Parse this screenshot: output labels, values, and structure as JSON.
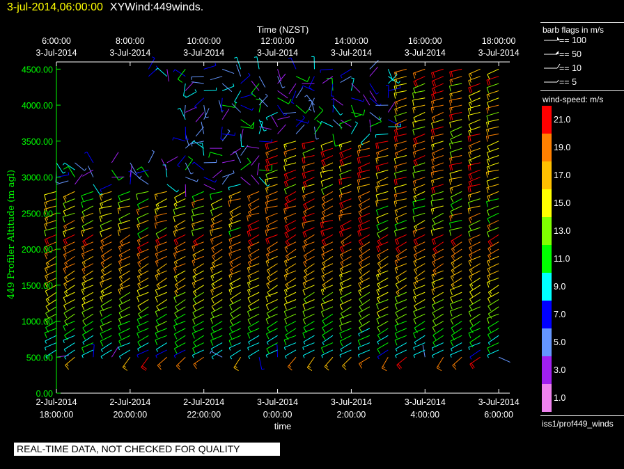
{
  "header": {
    "timestamp": "3-jul-2014,06:00:00",
    "title": "XYWind:449winds."
  },
  "footer": {
    "qc_notice": "REAL-TIME DATA, NOT CHECKED FOR QUALITY",
    "source": "iss1/prof449_winds"
  },
  "legend": {
    "barb_title": "barb flags in m/s",
    "barb_items": [
      "== 100",
      "== 50",
      "== 10",
      "== 5"
    ],
    "speed_title": "wind-speed: m/s",
    "speed_labels": [
      "21.0",
      "19.0",
      "17.0",
      "15.0",
      "13.0",
      "11.0",
      "9.0",
      "7.0",
      "5.0",
      "3.0",
      "1.0"
    ],
    "speed_colors": [
      "#ff0000",
      "#ff8000",
      "#ffc000",
      "#ffff00",
      "#80ff00",
      "#00ff00",
      "#00ffff",
      "#0000ff",
      "#6496ff",
      "#a020f0",
      "#ee82ee"
    ]
  },
  "chart_data": {
    "type": "scatter",
    "subtype": "wind-barb time-height",
    "xlabel": "time",
    "x2label": "Time (NZST)",
    "ylabel": "449 Profiler Altitude (m agl)",
    "ylim": [
      0,
      4600
    ],
    "bottom_ticks": [
      {
        "date": "2-Jul-2014",
        "time": "18:00:00"
      },
      {
        "date": "2-Jul-2014",
        "time": "20:00:00"
      },
      {
        "date": "2-Jul-2014",
        "time": "22:00:00"
      },
      {
        "date": "3-Jul-2014",
        "time": "0:00:00"
      },
      {
        "date": "3-Jul-2014",
        "time": "2:00:00"
      },
      {
        "date": "3-Jul-2014",
        "time": "4:00:00"
      },
      {
        "date": "3-Jul-2014",
        "time": "6:00:00"
      }
    ],
    "top_ticks": [
      {
        "time": "6:00:00",
        "date": "3-Jul-2014"
      },
      {
        "time": "8:00:00",
        "date": "3-Jul-2014"
      },
      {
        "time": "10:00:00",
        "date": "3-Jul-2014"
      },
      {
        "time": "12:00:00",
        "date": "3-Jul-2014"
      },
      {
        "time": "14:00:00",
        "date": "3-Jul-2014"
      },
      {
        "time": "16:00:00",
        "date": "3-Jul-2014"
      },
      {
        "time": "18:00:00",
        "date": "3-Jul-2014"
      }
    ],
    "y_ticks": [
      "0.00",
      "500.00",
      "1000.00",
      "1500.00",
      "2000.00",
      "2500.00",
      "3000.00",
      "3500.00",
      "4000.00",
      "4500.00"
    ],
    "y_values": [
      0,
      500,
      1000,
      1500,
      2000,
      2500,
      3000,
      3500,
      4000,
      4500
    ],
    "x_range_hours_utc": [
      18,
      30.3
    ],
    "barb_times_hours_utc": [
      18,
      18.5,
      19,
      19.5,
      20,
      20.5,
      21,
      21.5,
      22,
      22.5,
      23,
      23.5,
      24,
      24.5,
      25,
      25.5,
      26,
      26.5,
      27,
      27.5,
      28,
      28.5,
      29,
      29.5,
      30
    ],
    "barb_heights_m": [
      500,
      600,
      700,
      800,
      900,
      1000,
      1100,
      1200,
      1300,
      1400,
      1500,
      1600,
      1700,
      1800,
      1900,
      2000,
      2100,
      2200,
      2300,
      2400,
      2500,
      2600,
      2700,
      2800,
      2900,
      3000,
      3100,
      3200,
      3300,
      3400,
      3500,
      3600,
      3700,
      3800,
      3900,
      4000,
      4100,
      4200,
      4300,
      4400,
      4500
    ],
    "grid": false,
    "legend_position": "right"
  }
}
